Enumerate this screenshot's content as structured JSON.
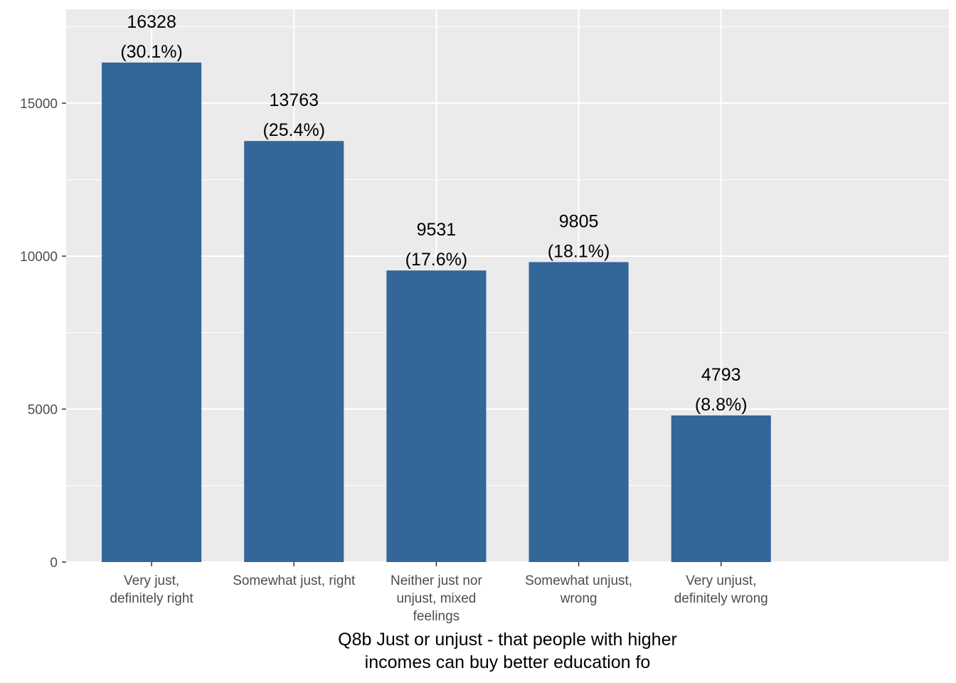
{
  "chart_data": {
    "type": "bar",
    "categories": [
      "Very just,\ndefinitely right",
      "Somewhat just, right",
      "Neither just nor\nunjust, mixed\nfeelings",
      "Somewhat unjust,\nwrong",
      "Very unjust,\ndefinitely wrong"
    ],
    "values": [
      16328,
      13763,
      9531,
      9805,
      4793
    ],
    "value_labels": [
      "16328\n(30.1%)",
      "13763\n(25.4%)",
      "9531\n(17.6%)",
      "9805\n(18.1%)",
      "4793\n(8.8%)"
    ],
    "color": "#336699",
    "x_label": "Q8b Just or unjust - that people with higher\nincomes can buy better education fo",
    "ylim": [
      0,
      18070
    ],
    "yticks": [
      0,
      5000,
      10000,
      15000
    ],
    "grid": true
  }
}
